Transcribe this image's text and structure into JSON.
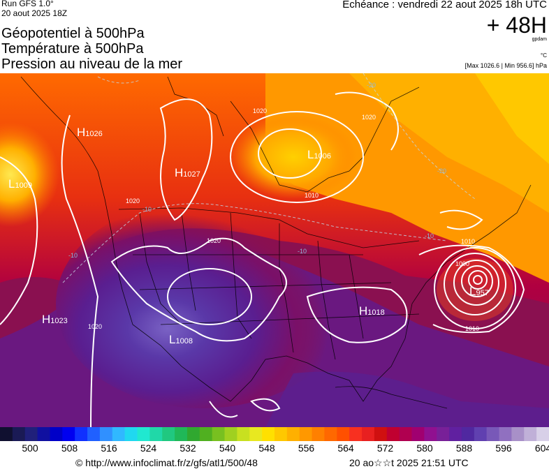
{
  "header": {
    "run": "Run GFS 1.0°",
    "run_date": "20 aout 2025 18Z",
    "titles": [
      "Géopotentiel à 500hPa",
      "Température à 500hPa",
      "Pression au niveau de la mer"
    ],
    "echeance": "Echéance : vendredi 22 aout 2025 18h UTC",
    "lead": "+ 48H",
    "unit_geo": "gpdam",
    "unit_temp": "°C",
    "maxmin": "[Max 1026.6 | Min 956.6] hPa"
  },
  "map": {
    "centers": [
      {
        "type": "H",
        "value": "1026"
      },
      {
        "type": "H",
        "value": "1027"
      },
      {
        "type": "L",
        "value": "1006"
      },
      {
        "type": "L",
        "value": "1009"
      },
      {
        "type": "H",
        "value": "1023"
      },
      {
        "type": "L",
        "value": "1008"
      },
      {
        "type": "H",
        "value": "1018"
      },
      {
        "type": "L",
        "value": "957"
      }
    ],
    "isobar_labels": [
      "1020",
      "1020",
      "1020",
      "1020",
      "1020",
      "1010",
      "1010",
      "1010",
      "1000"
    ],
    "isotherm_labels": [
      "-20",
      "-20",
      "-10",
      "-10",
      "-10",
      "-10"
    ]
  },
  "scale": {
    "colors": [
      "#101030",
      "#1a1a55",
      "#20207a",
      "#1010a0",
      "#0000c8",
      "#0000f0",
      "#1030ff",
      "#2060ff",
      "#3090ff",
      "#30b8ff",
      "#20d8f0",
      "#20e8d0",
      "#20d8a8",
      "#20c880",
      "#20b858",
      "#30a830",
      "#50b020",
      "#78c020",
      "#a0d020",
      "#c8e020",
      "#e8e820",
      "#ffe000",
      "#ffc800",
      "#ffb000",
      "#ff9800",
      "#ff8000",
      "#ff6800",
      "#ff5000",
      "#f83020",
      "#e82020",
      "#d01010",
      "#c00030",
      "#b00050",
      "#a00070",
      "#901090",
      "#782098",
      "#6020a0",
      "#5028a0",
      "#6040b0",
      "#7858b8",
      "#9070c0",
      "#a890c8",
      "#c0b0d8",
      "#d8d0e8"
    ],
    "ticks": [
      "500",
      "508",
      "516",
      "524",
      "532",
      "540",
      "548",
      "556",
      "564",
      "572",
      "580",
      "588",
      "596",
      "604"
    ]
  },
  "footer": {
    "credit": "© http://www.infoclimat.fr/z/gfs/atl1/500/48",
    "generated": "20 ao☆☆t 2025 21:51 UTC"
  }
}
